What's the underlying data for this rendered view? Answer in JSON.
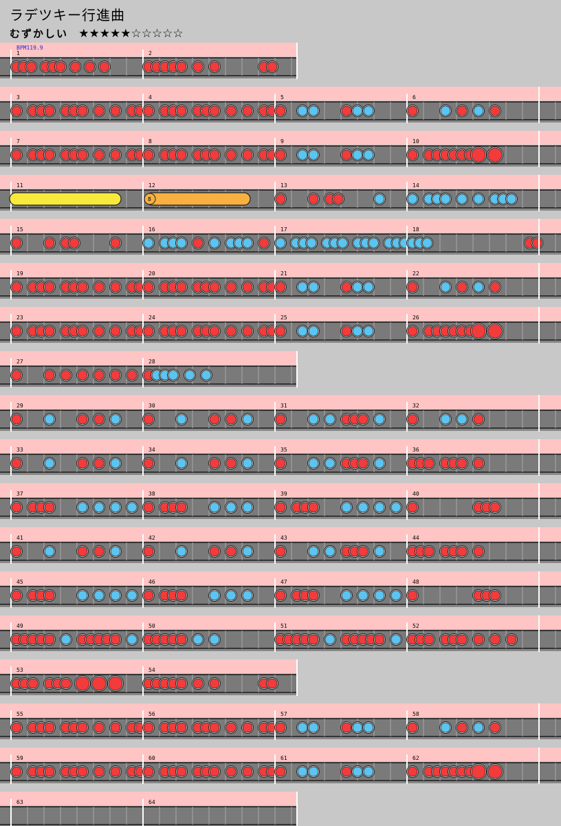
{
  "song": {
    "title": "ラデツキー行進曲"
  },
  "difficulty": {
    "label": "むずかしい",
    "stars": "★★★★★☆☆☆☆☆",
    "level": 5,
    "max_level": 10
  },
  "bpm_label": "BPM119.9",
  "colors": {
    "background": "#c8c8c8",
    "header": "#ffc4c4",
    "lane": "#7a7a7a",
    "don": "#f43b3b",
    "ka": "#5bc4f0",
    "drumroll": "#f8ea3c",
    "balloon": "#f8b040"
  },
  "rows": [
    {
      "bars": [
        1,
        2
      ]
    },
    {
      "bars": [
        3,
        4,
        5,
        6
      ]
    },
    {
      "bars": [
        7,
        8,
        9,
        10
      ]
    },
    {
      "bars": [
        11,
        12,
        13,
        14
      ]
    },
    {
      "bars": [
        15,
        16,
        17,
        18
      ]
    },
    {
      "bars": [
        19,
        20,
        21,
        22
      ]
    },
    {
      "bars": [
        23,
        24,
        25,
        26
      ]
    },
    {
      "bars": [
        27,
        28
      ]
    },
    {
      "bars": [
        29,
        30,
        31,
        32
      ]
    },
    {
      "bars": [
        33,
        34,
        35,
        36
      ]
    },
    {
      "bars": [
        37,
        38,
        39,
        40
      ]
    },
    {
      "bars": [
        41,
        42,
        43,
        44
      ]
    },
    {
      "bars": [
        45,
        46,
        47,
        48
      ]
    },
    {
      "bars": [
        49,
        50,
        51,
        52
      ]
    },
    {
      "bars": [
        53,
        54
      ]
    },
    {
      "bars": [
        55,
        56,
        57,
        58
      ]
    },
    {
      "bars": [
        59,
        60,
        61,
        62
      ]
    },
    {
      "bars": [
        63,
        64
      ]
    }
  ],
  "balloon": {
    "bar": 12,
    "hits": "8"
  },
  "measures": {
    "A": "d.d.d...d.d.d...d...d...d...d...",
    "B": "d...d.d.d...d.d.d...d...d...d.d.",
    "C": "d...d.d.d...d.d.d...d...d...d...",
    "D": "d.......k...k...........d...k...k...............",
    "E": "d.......k...d...k...d...........",
    "F": "d...d.d.d.d.d.d.D...D...........",
    "m1": "d.d.d...d.d.d...d...d...d...........",
    "m2": "d.d.d.d.d...d...d...........d.d.",
    "m27": "d.......d...d...d...d...d...d...",
    "m28": "d.k.k.k...k...k.................",
    "m29": "d.......k.......d...d...k.......",
    "m31": "d.......k...k...d.d.d...k.......",
    "m32": "d.......k...k...d...............",
    "m33": "d.......k.......d...d...k.......",
    "m36": "d.d.d...d.d.d...d...............",
    "m37": "d...d.d.d.......k...k...k...k...",
    "m38": "d...d.d.d.......k...k...k.......",
    "m39": "d...d.d.d.......k...k...k...k...",
    "m40": "d...............d.d.d...........",
    "m49": "d.d.d.d.d...k...d.d.d.d.d...k...",
    "m50": "d.d.d.d.d...k...k...............",
    "m51": "d.d.d.d.d...k...d.d.d.d.d...k...",
    "m52": "d.d.d...d.d.d...d...d...d.......",
    "m53": "d.d.d...d.d.d...D...D...D.......",
    "m54": "d.d.d.d.d...d...d...........d.d.",
    "m13": "d.......d...d.d.........k.......",
    "m14": "k...k.k.k...k...k...k.k.k.......",
    "m15": "d.......d...d.d.........d.......",
    "m16": "k...k.k.k...d...k...k.k.k...d...",
    "m17": "k...k.k.k...k.k.k...k.k.k...k.k.k.",
    "m18": "k.k.k...........................d.d."
  },
  "bar_measures": {
    "1": "m1",
    "2": "m2",
    "3": "B",
    "4": "B",
    "5": "D",
    "6": "E",
    "7": "B",
    "8": "B",
    "9": "D",
    "10": "F",
    "13": "m13",
    "14": "m14",
    "15": "m15",
    "16": "m16",
    "17": "m17",
    "18": "m18",
    "19": "B",
    "20": "B",
    "21": "D",
    "22": "E",
    "23": "B",
    "24": "B",
    "25": "D",
    "26": "F",
    "27": "m27",
    "28": "m28",
    "29": "m29",
    "30": "m29",
    "31": "m31",
    "32": "m32",
    "33": "m33",
    "34": "m29",
    "35": "m31",
    "36": "m36",
    "37": "m37",
    "38": "m38",
    "39": "m39",
    "40": "m40",
    "41": "m29",
    "42": "m29",
    "43": "m31",
    "44": "m36",
    "45": "m37",
    "46": "m38",
    "47": "m39",
    "48": "m40",
    "49": "m49",
    "50": "m50",
    "51": "m51",
    "52": "m52",
    "53": "m53",
    "54": "m54",
    "55": "B",
    "56": "B",
    "57": "D",
    "58": "E",
    "59": "B",
    "60": "B",
    "61": "D",
    "62": "F"
  }
}
